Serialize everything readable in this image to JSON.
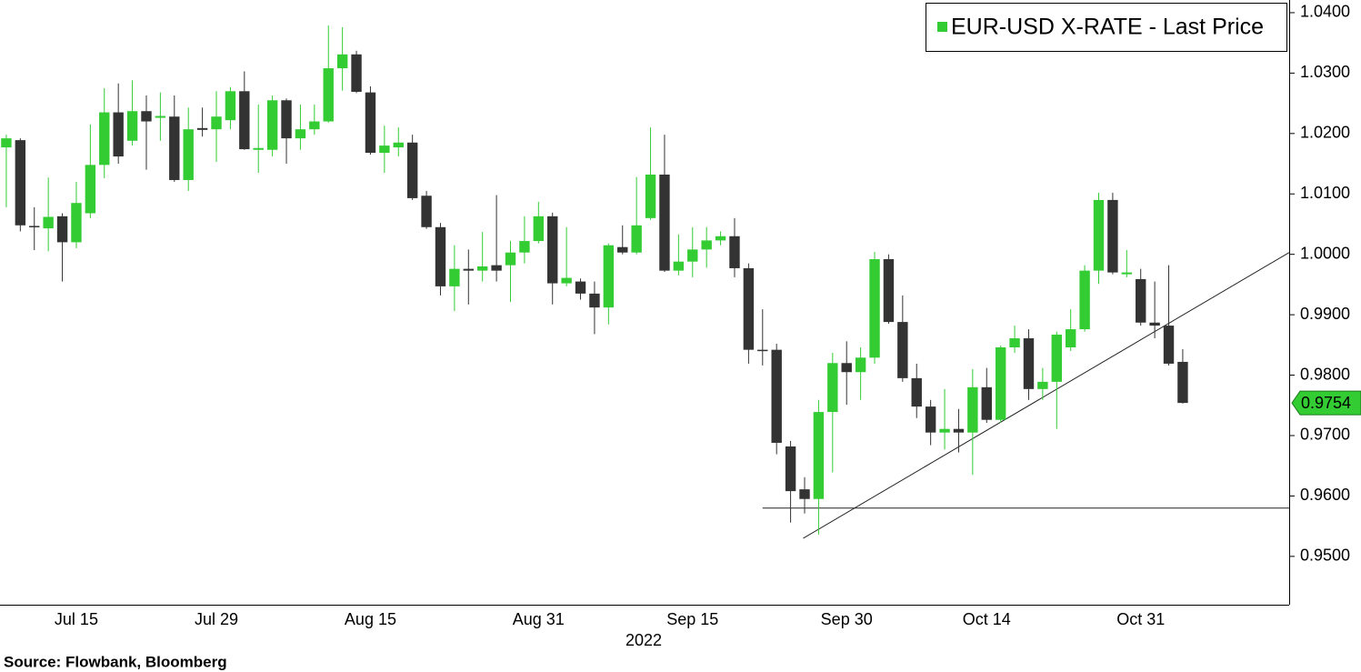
{
  "chart_data": {
    "type": "candlestick",
    "name": "EUR-USD X-RATE - Last Price",
    "xlabel": "2022",
    "source": "Source: Flowbank, Bloomberg",
    "up_color": "#33cc33",
    "down_color": "#333333",
    "categories": [
      null,
      null,
      null,
      null,
      null,
      "Jul 15",
      null,
      null,
      null,
      null,
      null,
      null,
      null,
      null,
      null,
      "Jul 29",
      null,
      null,
      null,
      null,
      null,
      null,
      null,
      null,
      null,
      null,
      "Aug 15",
      null,
      null,
      null,
      null,
      null,
      null,
      null,
      null,
      null,
      null,
      null,
      "Aug 31",
      null,
      null,
      null,
      null,
      null,
      null,
      null,
      null,
      null,
      null,
      "Sep 15",
      null,
      null,
      null,
      null,
      null,
      null,
      null,
      null,
      null,
      null,
      "Sep 30",
      null,
      null,
      null,
      null,
      null,
      null,
      null,
      null,
      null,
      "Oct 14",
      null,
      null,
      null,
      null,
      null,
      null,
      null,
      null,
      null,
      null,
      "Oct 31",
      null,
      null,
      null
    ],
    "open": [
      1.0177,
      1.0189,
      1.0047,
      1.0043,
      1.0063,
      1.002,
      1.0068,
      1.0148,
      1.0235,
      1.0188,
      1.0237,
      1.0226,
      1.0228,
      1.0123,
      1.0209,
      1.0207,
      1.0222,
      1.027,
      1.0173,
      1.0173,
      1.0255,
      1.0192,
      1.0207,
      1.022,
      1.0308,
      1.0331,
      1.0268,
      1.0168,
      1.0177,
      1.0185,
      1.0097,
      1.0045,
      0.9947,
      0.9976,
      0.9973,
      0.9982,
      0.9982,
      1.0003,
      1.0022,
      1.0063,
      0.9952,
      0.9955,
      0.9935,
      0.9912,
      1.0012,
      1.0003,
      1.006,
      1.0132,
      0.9973,
      0.9988,
      1.0008,
      1.0023,
      1.003,
      0.9977,
      0.9842,
      0.9842,
      0.9682,
      0.9611,
      0.9595,
      0.9739,
      0.982,
      0.9805,
      0.9829,
      0.9992,
      0.9888,
      0.9795,
      0.9748,
      0.9705,
      0.9711,
      0.9705,
      0.978,
      0.9726,
      0.9846,
      0.9861,
      0.9777,
      0.9789,
      0.9846,
      0.9876,
      0.9973,
      1.009,
      0.9967,
      0.9959,
      0.9887,
      0.9882,
      0.9822
    ],
    "high": [
      1.0198,
      1.0192,
      1.0078,
      1.0127,
      1.0068,
      1.012,
      1.0215,
      1.0275,
      1.0283,
      1.0288,
      1.0263,
      1.0268,
      1.0263,
      1.0243,
      1.0243,
      1.027,
      1.0277,
      1.0303,
      1.0248,
      1.0263,
      1.0258,
      1.0248,
      1.0248,
      1.0379,
      1.0376,
      1.0337,
      1.0278,
      1.0213,
      1.021,
      1.0198,
      1.0105,
      1.0052,
      1.0015,
      1.0008,
      1.0037,
      1.0098,
      1.0022,
      1.0063,
      1.0087,
      1.0069,
      1.0045,
      0.996,
      0.9955,
      1.0018,
      1.0048,
      1.0128,
      1.021,
      1.0198,
      1.0033,
      1.0045,
      1.0045,
      1.0038,
      1.006,
      0.9985,
      0.9909,
      0.9852,
      0.9691,
      0.9631,
      0.9759,
      0.9837,
      0.9856,
      0.9846,
      1.0004,
      1.0,
      0.9932,
      0.9819,
      0.9759,
      0.9777,
      0.9744,
      0.981,
      0.9812,
      0.9849,
      0.9882,
      0.9876,
      0.9812,
      0.9872,
      0.9909,
      0.9982,
      1.0102,
      1.0102,
      1.0007,
      0.9976,
      0.9955,
      0.9982,
      0.9843
    ],
    "low": [
      1.0078,
      1.0038,
      1.0007,
      1.0005,
      0.9955,
      1.001,
      1.006,
      1.0126,
      1.015,
      1.018,
      1.014,
      1.0188,
      1.012,
      1.0105,
      1.0195,
      1.0153,
      1.0207,
      1.0173,
      1.0135,
      1.0162,
      1.015,
      1.0173,
      1.0198,
      1.0218,
      1.0271,
      1.0267,
      1.0165,
      1.0135,
      1.0162,
      1.009,
      1.0042,
      0.9932,
      0.9906,
      0.9917,
      0.9955,
      0.9955,
      0.9921,
      0.9985,
      1.0018,
      0.9917,
      0.9947,
      0.9925,
      0.9868,
      0.9884,
      1.0,
      1.0,
      1.0057,
      0.9971,
      0.9965,
      0.9962,
      0.9978,
      1.0015,
      0.9962,
      0.9819,
      0.9816,
      0.9669,
      0.9556,
      0.9571,
      0.9536,
      0.9639,
      0.9751,
      0.9759,
      0.9819,
      0.9885,
      0.9789,
      0.9729,
      0.9684,
      0.9677,
      0.9672,
      0.9635,
      0.9721,
      0.9721,
      0.9837,
      0.9759,
      0.9759,
      0.9711,
      0.984,
      0.9872,
      0.9951,
      0.9967,
      0.9962,
      0.9882,
      0.9861,
      0.9816,
      0.9753
    ],
    "close": [
      1.0192,
      1.0048,
      1.0045,
      1.0062,
      1.002,
      1.0085,
      1.0148,
      1.0235,
      1.0162,
      1.0237,
      1.022,
      1.0229,
      1.0123,
      1.0207,
      1.0206,
      1.0228,
      1.027,
      1.0174,
      1.0176,
      1.0255,
      1.0192,
      1.0207,
      1.022,
      1.0308,
      1.0331,
      1.0269,
      1.0168,
      1.018,
      1.0185,
      1.0093,
      1.0045,
      0.9947,
      0.9976,
      0.9973,
      0.998,
      0.9973,
      1.0003,
      1.0022,
      1.0063,
      0.9952,
      0.9961,
      0.9935,
      0.9912,
      1.0015,
      1.0003,
      1.0048,
      1.0132,
      0.9973,
      0.9988,
      1.0008,
      1.0023,
      1.003,
      0.9977,
      0.9842,
      0.984,
      0.9688,
      0.9608,
      0.9595,
      0.9739,
      0.982,
      0.9805,
      0.9829,
      0.9992,
      0.9888,
      0.9795,
      0.9748,
      0.9705,
      0.9711,
      0.9705,
      0.978,
      0.9726,
      0.9846,
      0.9861,
      0.9777,
      0.9789,
      0.9867,
      0.9876,
      0.9973,
      1.009,
      0.997,
      0.997,
      0.9887,
      0.9882,
      0.9819,
      0.9754
    ],
    "lines": [
      {
        "x": [
          54,
          91.6
        ],
        "y": [
          0.958,
          0.958
        ]
      },
      {
        "x": [
          56.9,
          91.6
        ],
        "y": [
          0.953,
          1.0003
        ]
      }
    ],
    "xlim": [
      -0.45,
      91.6
    ],
    "ylim": [
      0.942,
      1.0421
    ],
    "yticks": [
      {
        "value": 0.95,
        "label": "0.9500"
      },
      {
        "value": 0.96,
        "label": "0.9600"
      },
      {
        "value": 0.97,
        "label": "0.9700"
      },
      {
        "value": 0.98,
        "label": "0.9800"
      },
      {
        "value": 0.99,
        "label": "0.9900"
      },
      {
        "value": 1.0,
        "label": "1.0000"
      },
      {
        "value": 1.01,
        "label": "1.0100"
      },
      {
        "value": 1.02,
        "label": "1.0200"
      },
      {
        "value": 1.03,
        "label": "1.0300"
      },
      {
        "value": 1.04,
        "label": "1.0400"
      }
    ],
    "yaxis_side": "right",
    "legend_position": "upper right",
    "grid": false
  }
}
